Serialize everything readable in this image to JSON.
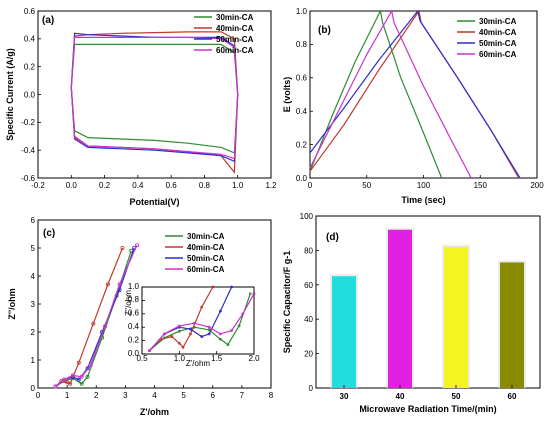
{
  "chart_data": [
    {
      "panel": "(a)",
      "type": "line",
      "xlabel": "Potential(V)",
      "ylabel": "Specific Current (A/g)",
      "xlim": [
        -0.2,
        1.2
      ],
      "ylim": [
        -0.6,
        0.6
      ],
      "xticks": [
        "-0.2",
        "0.0",
        "0.2",
        "0.4",
        "0.6",
        "0.8",
        "1.0",
        "1.2"
      ],
      "yticks": [
        "-0.6",
        "-0.4",
        "-0.2",
        "0.0",
        "0.2",
        "0.4",
        "0.6"
      ],
      "legend": "top-right",
      "series": [
        {
          "name": "30min-CA",
          "color": "#2e8b2e",
          "x": [
            0,
            0.02,
            0.1,
            0.3,
            0.5,
            0.7,
            0.9,
            0.98,
            1.0,
            0.98,
            0.9,
            0.7,
            0.5,
            0.3,
            0.1,
            0.02,
            0
          ],
          "y": [
            0.05,
            0.36,
            0.36,
            0.36,
            0.36,
            0.36,
            0.36,
            0.3,
            0.0,
            -0.42,
            -0.38,
            -0.35,
            -0.33,
            -0.32,
            -0.31,
            -0.26,
            0.05
          ]
        },
        {
          "name": "40min-CA",
          "color": "#c0392b",
          "x": [
            0,
            0.02,
            0.1,
            0.3,
            0.5,
            0.7,
            0.9,
            0.98,
            1.0,
            0.98,
            0.9,
            0.7,
            0.5,
            0.3,
            0.1,
            0.02,
            0
          ],
          "y": [
            0.05,
            0.42,
            0.43,
            0.44,
            0.445,
            0.45,
            0.45,
            0.4,
            0.0,
            -0.56,
            -0.44,
            -0.41,
            -0.39,
            -0.38,
            -0.37,
            -0.3,
            0.05
          ]
        },
        {
          "name": "50min-CA",
          "color": "#2c2ccf",
          "x": [
            0,
            0.02,
            0.1,
            0.3,
            0.5,
            0.7,
            0.9,
            0.98,
            1.0,
            0.98,
            0.9,
            0.7,
            0.5,
            0.3,
            0.1,
            0.02,
            0
          ],
          "y": [
            0.05,
            0.44,
            0.43,
            0.42,
            0.41,
            0.41,
            0.41,
            0.35,
            0.0,
            -0.48,
            -0.44,
            -0.42,
            -0.4,
            -0.39,
            -0.38,
            -0.32,
            0.05
          ]
        },
        {
          "name": "60min-CA",
          "color": "#cc33cc",
          "x": [
            0,
            0.02,
            0.1,
            0.3,
            0.5,
            0.7,
            0.9,
            0.98,
            1.0,
            0.98,
            0.9,
            0.7,
            0.5,
            0.3,
            0.1,
            0.02,
            0
          ],
          "y": [
            0.05,
            0.41,
            0.41,
            0.41,
            0.41,
            0.41,
            0.4,
            0.34,
            0.0,
            -0.46,
            -0.43,
            -0.41,
            -0.39,
            -0.38,
            -0.37,
            -0.31,
            0.05
          ]
        }
      ]
    },
    {
      "panel": "(b)",
      "type": "line",
      "xlabel": "Time (sec)",
      "ylabel": "E (volts)",
      "xlim": [
        0,
        200
      ],
      "ylim": [
        0,
        1.0
      ],
      "xticks": [
        "0",
        "50",
        "100",
        "150",
        "200"
      ],
      "yticks": [
        "0.0",
        "0.2",
        "0.4",
        "0.6",
        "0.8",
        "1.0"
      ],
      "legend": "top-right",
      "series": [
        {
          "name": "30min-CA",
          "color": "#2e8b2e",
          "x": [
            0,
            20,
            40,
            62,
            64,
            80,
            100,
            116
          ],
          "y": [
            0.04,
            0.38,
            0.7,
            1.0,
            0.93,
            0.6,
            0.27,
            0.0
          ]
        },
        {
          "name": "40min-CA",
          "color": "#c0392b",
          "x": [
            0,
            30,
            60,
            96,
            98,
            130,
            160,
            184
          ],
          "y": [
            0.04,
            0.32,
            0.64,
            1.0,
            0.93,
            0.6,
            0.28,
            0.0
          ]
        },
        {
          "name": "50min-CA",
          "color": "#2c2ccf",
          "x": [
            0,
            30,
            60,
            95,
            97,
            130,
            160,
            185
          ],
          "y": [
            0.15,
            0.42,
            0.7,
            1.0,
            0.94,
            0.6,
            0.28,
            0.0
          ]
        },
        {
          "name": "60min-CA",
          "color": "#cc33cc",
          "x": [
            0,
            25,
            50,
            72,
            74,
            100,
            125,
            142
          ],
          "y": [
            0.06,
            0.4,
            0.74,
            1.0,
            0.93,
            0.55,
            0.22,
            0.0
          ]
        }
      ]
    },
    {
      "panel": "(c)",
      "type": "line",
      "xlabel": "Z'/ohm",
      "ylabel": "Z''/ohm",
      "xlim": [
        0,
        8
      ],
      "ylim": [
        0,
        6
      ],
      "xticks": [
        "0",
        "1",
        "2",
        "3",
        "4",
        "5",
        "6",
        "7",
        "8"
      ],
      "yticks": [
        "0",
        "1",
        "2",
        "3",
        "4",
        "5",
        "6"
      ],
      "legend": "top-right",
      "series": [
        {
          "name": "30min-CA",
          "color": "#2e8b2e",
          "x": [
            0.6,
            0.9,
            1.2,
            1.5,
            1.7,
            2.2,
            2.7,
            3.2
          ],
          "y": [
            0.05,
            0.25,
            0.35,
            0.15,
            0.4,
            1.8,
            3.3,
            4.9
          ]
        },
        {
          "name": "40min-CA",
          "color": "#c0392b",
          "x": [
            0.6,
            0.8,
            1.0,
            1.1,
            1.4,
            1.9,
            2.4,
            2.9
          ],
          "y": [
            0.05,
            0.25,
            0.2,
            0.15,
            0.9,
            2.3,
            3.7,
            5.0
          ]
        },
        {
          "name": "50min-CA",
          "color": "#2c2ccf",
          "x": [
            0.6,
            0.9,
            1.2,
            1.4,
            1.7,
            2.2,
            2.8,
            3.3
          ],
          "y": [
            0.05,
            0.3,
            0.4,
            0.3,
            0.7,
            2.0,
            3.5,
            5.0
          ]
        },
        {
          "name": "60min-CA",
          "color": "#cc33cc",
          "x": [
            0.6,
            0.9,
            1.2,
            1.5,
            1.8,
            2.3,
            2.8,
            3.4
          ],
          "y": [
            0.05,
            0.3,
            0.45,
            0.4,
            0.8,
            2.2,
            3.7,
            5.1
          ]
        }
      ],
      "inset": {
        "xlim": [
          0.5,
          2.0
        ],
        "ylim": [
          0,
          1.0
        ],
        "xticks": [
          "0.5",
          "1.0",
          "1.5",
          "2.0"
        ],
        "yticks": [
          "0.0",
          "0.2",
          "0.4",
          "0.6",
          "0.8",
          "1.0"
        ],
        "xlabel": "Z'/ohm",
        "ylabel": "Z''/ohm",
        "series": [
          {
            "name": "30min-CA",
            "color": "#2e8b2e",
            "x": [
              0.6,
              0.8,
              1.0,
              1.2,
              1.4,
              1.55,
              1.65,
              1.8,
              1.95
            ],
            "y": [
              0.05,
              0.24,
              0.34,
              0.4,
              0.36,
              0.22,
              0.14,
              0.42,
              0.9
            ]
          },
          {
            "name": "40min-CA",
            "color": "#c0392b",
            "x": [
              0.6,
              0.75,
              0.9,
              1.0,
              1.05,
              1.15,
              1.3,
              1.45
            ],
            "y": [
              0.05,
              0.22,
              0.26,
              0.16,
              0.1,
              0.3,
              0.7,
              1.0
            ]
          },
          {
            "name": "50min-CA",
            "color": "#2c2ccf",
            "x": [
              0.6,
              0.8,
              1.0,
              1.15,
              1.3,
              1.4,
              1.55,
              1.7
            ],
            "y": [
              0.05,
              0.3,
              0.4,
              0.37,
              0.26,
              0.3,
              0.64,
              1.0
            ]
          },
          {
            "name": "60min-CA",
            "color": "#cc33cc",
            "x": [
              0.6,
              0.8,
              1.0,
              1.2,
              1.4,
              1.55,
              1.7,
              1.85,
              2.0
            ],
            "y": [
              0.05,
              0.3,
              0.42,
              0.46,
              0.4,
              0.3,
              0.35,
              0.6,
              0.9
            ]
          }
        ]
      }
    },
    {
      "panel": "(d)",
      "type": "bar",
      "xlabel": "Microwave Radiation Time/(min)",
      "ylabel": "Specific Capacitor/F g-1",
      "categories": [
        "30",
        "40",
        "50",
        "60"
      ],
      "values": [
        65,
        92,
        82,
        73
      ],
      "colors": [
        "#22dddd",
        "#e020e0",
        "#f4f41e",
        "#8a8a00"
      ],
      "ylim": [
        0,
        100
      ],
      "yticks": [
        "0",
        "20",
        "40",
        "60",
        "80",
        "100"
      ]
    }
  ]
}
